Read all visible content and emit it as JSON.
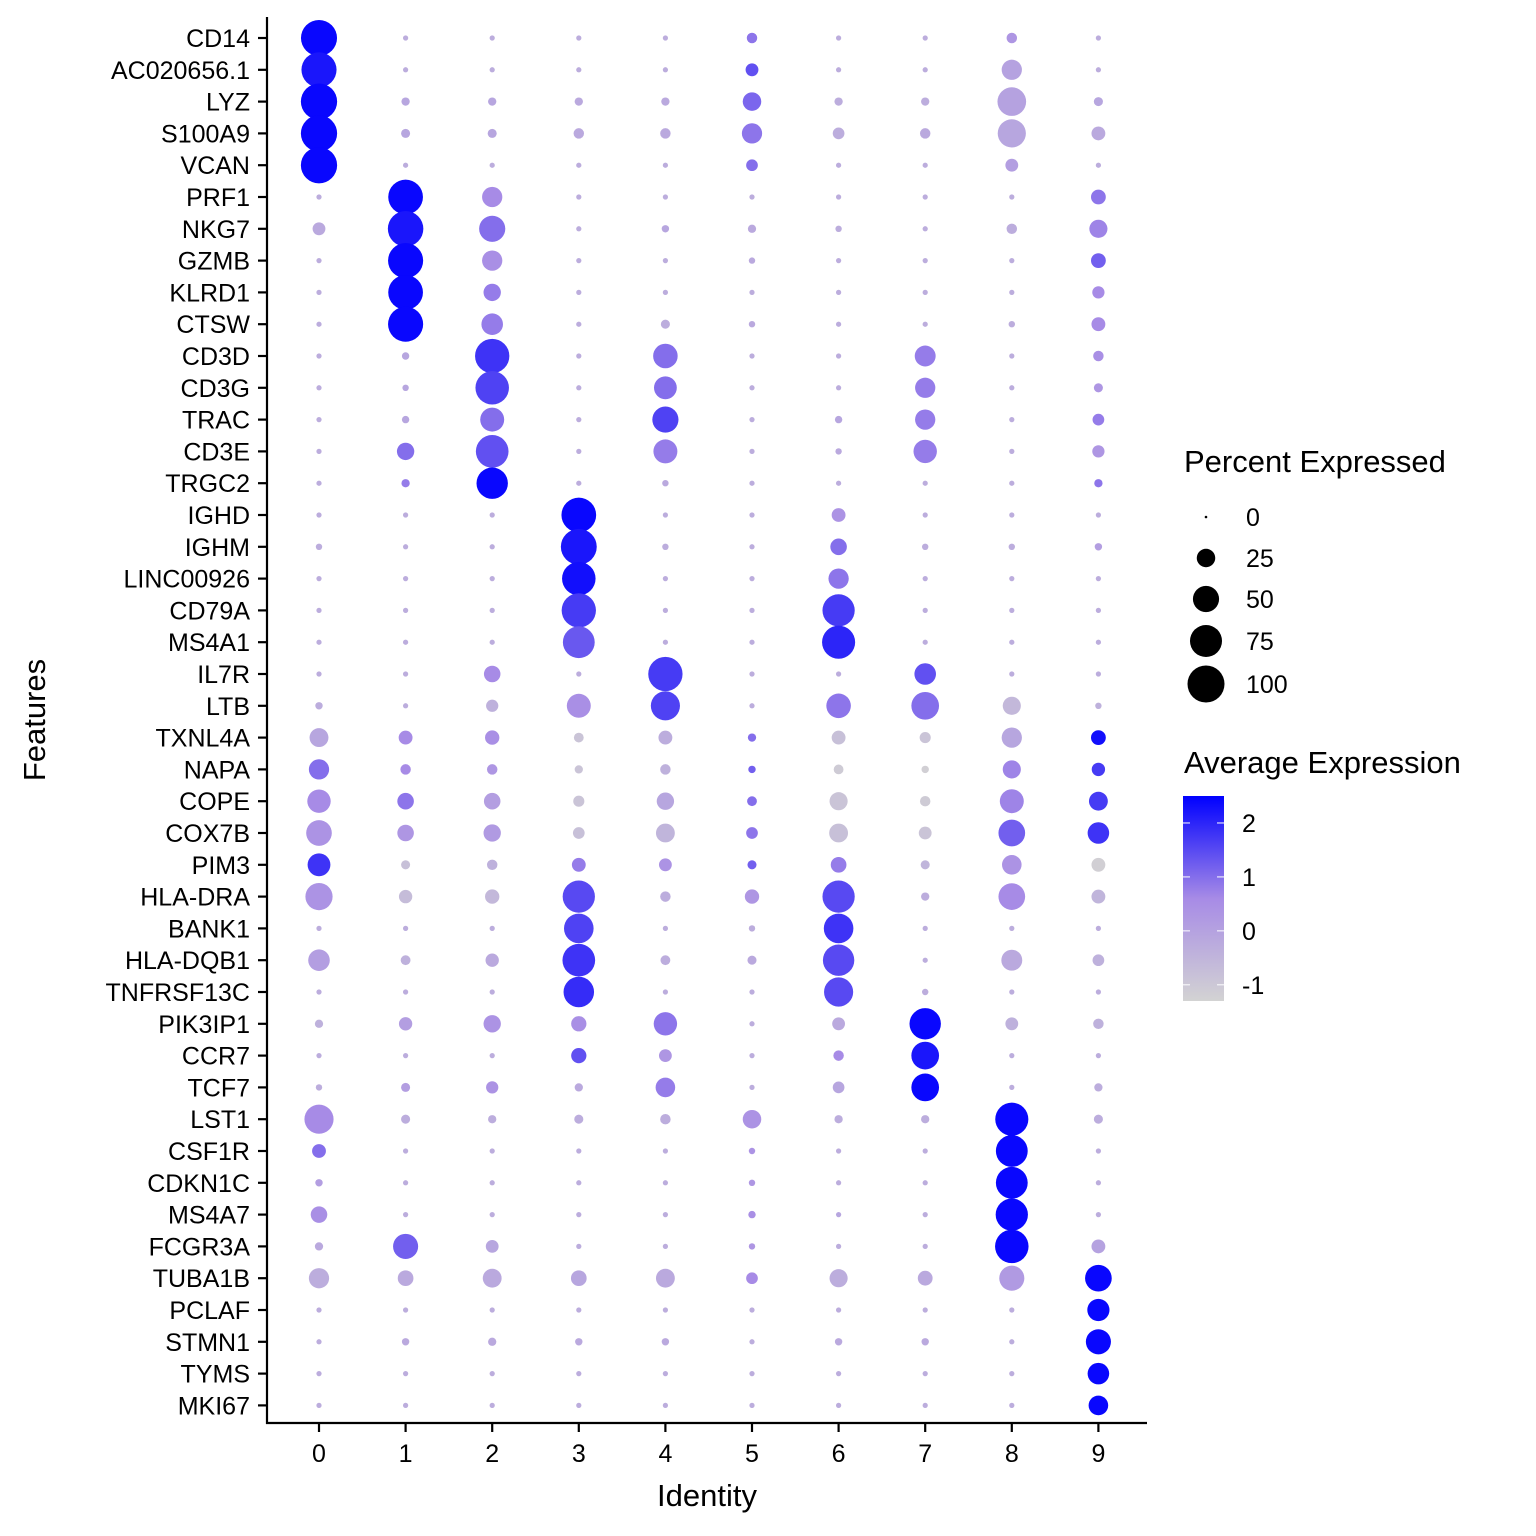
{
  "chart_data": {
    "type": "scatter",
    "subtype": "dotplot",
    "title": "",
    "xlabel": "Identity",
    "ylabel": "Features",
    "categories": [
      "0",
      "1",
      "2",
      "3",
      "4",
      "5",
      "6",
      "7",
      "8",
      "9"
    ],
    "features": [
      "CD14",
      "AC020656.1",
      "LYZ",
      "S100A9",
      "VCAN",
      "PRF1",
      "NKG7",
      "GZMB",
      "KLRD1",
      "CTSW",
      "CD3D",
      "CD3G",
      "TRAC",
      "CD3E",
      "TRGC2",
      "IGHD",
      "IGHM",
      "LINC00926",
      "CD79A",
      "MS4A1",
      "IL7R",
      "LTB",
      "TXNL4A",
      "NAPA",
      "COPE",
      "COX7B",
      "PIM3",
      "HLA-DRA",
      "BANK1",
      "HLA-DQB1",
      "TNFRSF13C",
      "PIK3IP1",
      "CCR7",
      "TCF7",
      "LST1",
      "CSF1R",
      "CDKN1C",
      "MS4A7",
      "FCGR3A",
      "TUBA1B",
      "PCLAF",
      "STMN1",
      "TYMS",
      "MKI67"
    ],
    "pct_expressed": [
      [
        95,
        2,
        2,
        2,
        2,
        8,
        2,
        2,
        8,
        2
      ],
      [
        90,
        2,
        2,
        2,
        2,
        12,
        2,
        2,
        30,
        2
      ],
      [
        96,
        5,
        5,
        5,
        5,
        25,
        5,
        5,
        60,
        6
      ],
      [
        96,
        6,
        6,
        8,
        8,
        30,
        10,
        8,
        58,
        14
      ],
      [
        96,
        2,
        2,
        2,
        2,
        10,
        2,
        2,
        12,
        2
      ],
      [
        2,
        88,
        30,
        2,
        2,
        2,
        2,
        2,
        2,
        16
      ],
      [
        12,
        92,
        50,
        2,
        4,
        5,
        3,
        2,
        8,
        24
      ],
      [
        2,
        90,
        30,
        2,
        2,
        3,
        2,
        2,
        2,
        16
      ],
      [
        2,
        88,
        22,
        2,
        2,
        2,
        2,
        2,
        2,
        11
      ],
      [
        2,
        90,
        34,
        2,
        6,
        3,
        2,
        2,
        3,
        14
      ],
      [
        2,
        4,
        86,
        2,
        44,
        2,
        2,
        32,
        2,
        8
      ],
      [
        2,
        3,
        82,
        2,
        38,
        2,
        2,
        30,
        2,
        6
      ],
      [
        2,
        4,
        42,
        2,
        50,
        2,
        4,
        30,
        2,
        10
      ],
      [
        2,
        22,
        78,
        2,
        42,
        2,
        3,
        40,
        2,
        11
      ],
      [
        2,
        5,
        72,
        2,
        3,
        2,
        2,
        2,
        2,
        5
      ],
      [
        2,
        2,
        2,
        88,
        2,
        2,
        14,
        2,
        2,
        2
      ],
      [
        3,
        2,
        2,
        94,
        3,
        2,
        20,
        3,
        3,
        4
      ],
      [
        2,
        2,
        2,
        82,
        2,
        2,
        30,
        2,
        2,
        2
      ],
      [
        2,
        2,
        2,
        86,
        2,
        2,
        76,
        2,
        2,
        2
      ],
      [
        2,
        2,
        2,
        74,
        2,
        2,
        80,
        2,
        2,
        2
      ],
      [
        2,
        2,
        20,
        2,
        86,
        2,
        2,
        34,
        2,
        2
      ],
      [
        4,
        2,
        11,
        42,
        62,
        2,
        44,
        56,
        24,
        3
      ],
      [
        26,
        14,
        15,
        7,
        14,
        5,
        14,
        9,
        30,
        16
      ],
      [
        30,
        8,
        8,
        5,
        8,
        4,
        7,
        4,
        24,
        13
      ],
      [
        40,
        20,
        20,
        9,
        22,
        7,
        24,
        8,
        42,
        26
      ],
      [
        48,
        20,
        22,
        10,
        26,
        10,
        26,
        12,
        52,
        34
      ],
      [
        38,
        6,
        8,
        14,
        12,
        6,
        18,
        6,
        28,
        14
      ],
      [
        54,
        13,
        15,
        76,
        8,
        15,
        76,
        5,
        52,
        14
      ],
      [
        2,
        2,
        2,
        64,
        2,
        3,
        64,
        2,
        2,
        2
      ],
      [
        34,
        7,
        13,
        78,
        7,
        6,
        72,
        2,
        32,
        10
      ],
      [
        2,
        2,
        2,
        68,
        2,
        2,
        62,
        3,
        2,
        2
      ],
      [
        5,
        13,
        22,
        17,
        40,
        2,
        12,
        72,
        12,
        8
      ],
      [
        2,
        2,
        2,
        17,
        12,
        2,
        8,
        56,
        2,
        2
      ],
      [
        3,
        6,
        11,
        5,
        28,
        2,
        10,
        56,
        2,
        5
      ],
      [
        62,
        6,
        5,
        6,
        8,
        25,
        5,
        5,
        80,
        6
      ],
      [
        14,
        2,
        2,
        2,
        2,
        3,
        2,
        2,
        74,
        2
      ],
      [
        4,
        2,
        2,
        2,
        2,
        3,
        2,
        2,
        74,
        2
      ],
      [
        20,
        2,
        2,
        2,
        2,
        4,
        2,
        2,
        76,
        2
      ],
      [
        5,
        46,
        12,
        2,
        2,
        3,
        2,
        2,
        82,
        14
      ],
      [
        30,
        18,
        26,
        18,
        26,
        10,
        24,
        16,
        46,
        52
      ],
      [
        2,
        2,
        2,
        2,
        2,
        2,
        2,
        2,
        2,
        36
      ],
      [
        2,
        4,
        5,
        4,
        4,
        2,
        4,
        4,
        2,
        46
      ],
      [
        2,
        2,
        2,
        2,
        2,
        2,
        2,
        2,
        2,
        34
      ],
      [
        2,
        2,
        2,
        2,
        2,
        2,
        2,
        2,
        2,
        28
      ]
    ],
    "avg_expression": [
      [
        2.4,
        -0.3,
        -0.3,
        -0.3,
        -0.3,
        0.9,
        -0.3,
        -0.3,
        0.3,
        -0.3
      ],
      [
        2.2,
        -0.3,
        -0.3,
        -0.3,
        -0.3,
        1.4,
        -0.3,
        -0.3,
        0.0,
        -0.3
      ],
      [
        2.4,
        -0.1,
        -0.1,
        -0.2,
        -0.2,
        1.1,
        -0.3,
        -0.3,
        0.0,
        -0.1
      ],
      [
        2.4,
        -0.1,
        -0.1,
        -0.2,
        -0.2,
        0.9,
        -0.3,
        -0.2,
        -0.1,
        -0.2
      ],
      [
        2.4,
        -0.3,
        -0.3,
        -0.3,
        -0.3,
        1.0,
        -0.3,
        -0.3,
        0.1,
        -0.3
      ],
      [
        -0.3,
        2.4,
        0.6,
        -0.3,
        -0.3,
        -0.3,
        -0.3,
        -0.3,
        -0.3,
        0.9
      ],
      [
        -0.2,
        2.2,
        1.0,
        -0.3,
        -0.1,
        -0.2,
        -0.3,
        -0.3,
        -0.3,
        0.7
      ],
      [
        -0.3,
        2.4,
        0.5,
        -0.3,
        -0.3,
        -0.2,
        -0.3,
        -0.3,
        -0.3,
        1.2
      ],
      [
        -0.3,
        2.4,
        0.8,
        -0.3,
        -0.3,
        -0.3,
        -0.3,
        -0.3,
        -0.3,
        0.6
      ],
      [
        -0.3,
        2.4,
        0.8,
        -0.3,
        -0.3,
        -0.2,
        -0.3,
        -0.3,
        -0.3,
        0.6
      ],
      [
        -0.3,
        -0.1,
        1.8,
        -0.3,
        1.0,
        -0.3,
        -0.3,
        0.8,
        -0.3,
        0.5
      ],
      [
        -0.3,
        -0.1,
        1.6,
        -0.3,
        1.0,
        -0.3,
        -0.3,
        0.8,
        -0.3,
        0.3
      ],
      [
        -0.3,
        -0.1,
        1.0,
        -0.3,
        1.6,
        -0.3,
        -0.1,
        0.8,
        -0.3,
        0.8
      ],
      [
        -0.3,
        1.0,
        1.4,
        -0.3,
        0.8,
        -0.3,
        -0.2,
        0.8,
        -0.3,
        0.3
      ],
      [
        -0.3,
        0.8,
        2.4,
        -0.3,
        -0.2,
        -0.3,
        -0.3,
        -0.3,
        -0.3,
        0.9
      ],
      [
        -0.3,
        -0.3,
        -0.3,
        2.4,
        -0.3,
        -0.3,
        0.4,
        -0.3,
        -0.3,
        -0.3
      ],
      [
        -0.3,
        -0.3,
        -0.3,
        2.2,
        -0.3,
        -0.3,
        1.0,
        -0.3,
        -0.3,
        0.1
      ],
      [
        -0.3,
        -0.3,
        -0.3,
        2.3,
        -0.3,
        -0.3,
        0.9,
        -0.3,
        -0.3,
        -0.3
      ],
      [
        -0.3,
        -0.3,
        -0.3,
        1.7,
        -0.3,
        -0.3,
        1.7,
        -0.3,
        -0.3,
        -0.3
      ],
      [
        -0.3,
        -0.3,
        -0.3,
        1.3,
        -0.3,
        -0.3,
        2.0,
        -0.3,
        -0.3,
        -0.3
      ],
      [
        -0.3,
        -0.3,
        0.6,
        -0.3,
        1.7,
        -0.3,
        -0.3,
        1.4,
        -0.3,
        -0.3
      ],
      [
        -0.3,
        -0.3,
        -0.4,
        0.5,
        1.6,
        -0.3,
        0.9,
        1.0,
        -0.6,
        -0.4
      ],
      [
        -0.1,
        0.6,
        0.5,
        -0.9,
        -0.3,
        1.0,
        -0.8,
        -0.9,
        -0.1,
        2.3
      ],
      [
        1.0,
        0.6,
        0.3,
        -0.9,
        -0.4,
        1.2,
        -1.1,
        -1.2,
        0.7,
        1.7
      ],
      [
        0.6,
        0.9,
        0.1,
        -0.9,
        -0.1,
        1.0,
        -0.9,
        -1.1,
        0.7,
        1.7
      ],
      [
        0.4,
        0.3,
        0.2,
        -0.8,
        -0.5,
        0.9,
        -0.8,
        -0.9,
        1.2,
        1.8
      ],
      [
        1.8,
        -0.8,
        -0.4,
        0.8,
        0.4,
        1.2,
        0.8,
        -0.5,
        0.4,
        -1.2
      ],
      [
        0.4,
        -0.7,
        -0.6,
        1.5,
        -0.3,
        0.3,
        1.5,
        -0.3,
        0.6,
        -0.5
      ],
      [
        -0.3,
        -0.3,
        -0.3,
        1.6,
        -0.3,
        -0.3,
        1.8,
        -0.3,
        -0.3,
        -0.3
      ],
      [
        0.1,
        -0.4,
        -0.2,
        1.8,
        -0.3,
        -0.2,
        1.5,
        -0.3,
        -0.2,
        -0.4
      ],
      [
        -0.3,
        -0.3,
        -0.3,
        1.9,
        -0.3,
        -0.3,
        1.5,
        -0.3,
        -0.3,
        -0.3
      ],
      [
        -0.4,
        0.1,
        0.4,
        0.5,
        0.9,
        -0.3,
        -0.2,
        2.4,
        -0.4,
        -0.4
      ],
      [
        -0.3,
        -0.3,
        -0.3,
        1.4,
        0.3,
        -0.3,
        0.6,
        2.2,
        -0.3,
        -0.3
      ],
      [
        -0.3,
        0.1,
        0.4,
        -0.2,
        0.8,
        -0.3,
        -0.1,
        2.4,
        -0.3,
        -0.3
      ],
      [
        0.6,
        -0.3,
        -0.3,
        -0.3,
        -0.3,
        0.4,
        -0.3,
        -0.3,
        2.4,
        -0.3
      ],
      [
        1.0,
        -0.3,
        -0.3,
        -0.3,
        -0.3,
        0.4,
        -0.3,
        -0.3,
        2.4,
        -0.3
      ],
      [
        0.1,
        -0.3,
        -0.3,
        -0.3,
        -0.3,
        0.3,
        -0.3,
        -0.3,
        2.4,
        -0.3
      ],
      [
        0.5,
        -0.3,
        -0.3,
        -0.3,
        -0.3,
        0.5,
        -0.1,
        -0.3,
        2.4,
        -0.3
      ],
      [
        -0.2,
        1.2,
        -0.1,
        -0.3,
        -0.3,
        0.3,
        -0.3,
        -0.3,
        2.4,
        0.0
      ],
      [
        -0.3,
        -0.2,
        -0.2,
        -0.1,
        -0.2,
        0.6,
        -0.3,
        -0.2,
        0.2,
        2.4
      ],
      [
        -0.3,
        -0.3,
        -0.3,
        -0.3,
        -0.3,
        -0.3,
        -0.3,
        -0.3,
        -0.3,
        2.4
      ],
      [
        -0.3,
        -0.2,
        -0.2,
        -0.2,
        -0.2,
        -0.3,
        -0.2,
        -0.2,
        -0.3,
        2.4
      ],
      [
        -0.3,
        -0.3,
        -0.3,
        -0.3,
        -0.3,
        -0.3,
        -0.3,
        -0.3,
        -0.3,
        2.4
      ],
      [
        -0.3,
        -0.3,
        -0.3,
        -0.3,
        -0.3,
        -0.3,
        -0.3,
        -0.3,
        -0.3,
        2.4
      ]
    ],
    "size_legend": {
      "title": "Percent Expressed",
      "values": [
        0,
        25,
        50,
        75,
        100
      ],
      "labels": [
        "0",
        "25",
        "50",
        "75",
        "100"
      ]
    },
    "color_legend": {
      "title": "Average Expression",
      "range": [
        -1.3,
        2.5
      ],
      "ticks": [
        2,
        1,
        0,
        -1
      ],
      "tick_labels": [
        "2",
        "1",
        "0",
        "-1"
      ],
      "low_color": "#d3d3d3",
      "high_color": "#0000ff"
    },
    "grid": false,
    "legend_position": "right"
  }
}
